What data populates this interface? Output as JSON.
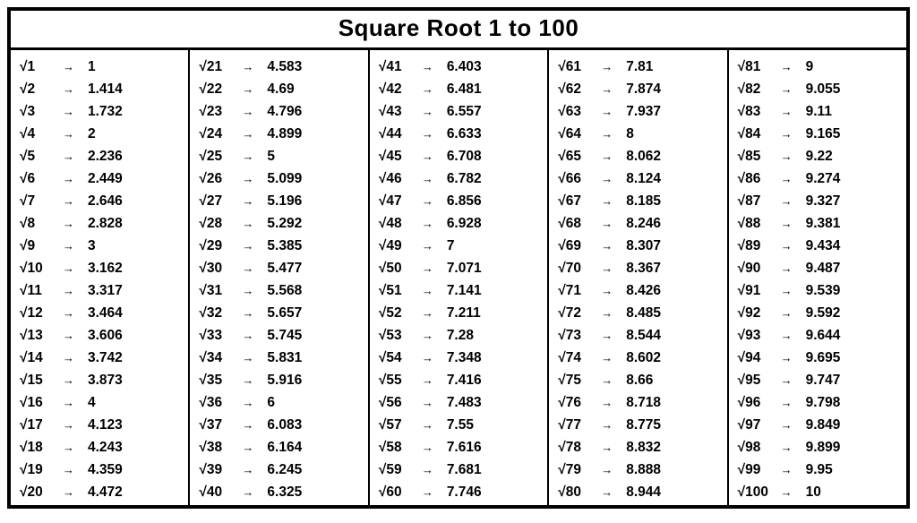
{
  "title": "Square Root 1 to 100",
  "arrow_glyph": "→",
  "radical": "√",
  "columns": [
    [
      {
        "n": "1",
        "v": "1"
      },
      {
        "n": "2",
        "v": "1.414"
      },
      {
        "n": "3",
        "v": "1.732"
      },
      {
        "n": "4",
        "v": "2"
      },
      {
        "n": "5",
        "v": "2.236"
      },
      {
        "n": "6",
        "v": "2.449"
      },
      {
        "n": "7",
        "v": "2.646"
      },
      {
        "n": "8",
        "v": "2.828"
      },
      {
        "n": "9",
        "v": "3"
      },
      {
        "n": "10",
        "v": "3.162"
      },
      {
        "n": "11",
        "v": "3.317"
      },
      {
        "n": "12",
        "v": "3.464"
      },
      {
        "n": "13",
        "v": "3.606"
      },
      {
        "n": "14",
        "v": "3.742"
      },
      {
        "n": "15",
        "v": "3.873"
      },
      {
        "n": "16",
        "v": "4"
      },
      {
        "n": "17",
        "v": "4.123"
      },
      {
        "n": "18",
        "v": "4.243"
      },
      {
        "n": "19",
        "v": "4.359"
      },
      {
        "n": "20",
        "v": "4.472"
      }
    ],
    [
      {
        "n": "21",
        "v": "4.583"
      },
      {
        "n": "22",
        "v": "4.69"
      },
      {
        "n": "23",
        "v": "4.796"
      },
      {
        "n": "24",
        "v": "4.899"
      },
      {
        "n": "25",
        "v": "5"
      },
      {
        "n": "26",
        "v": "5.099"
      },
      {
        "n": "27",
        "v": "5.196"
      },
      {
        "n": "28",
        "v": "5.292"
      },
      {
        "n": "29",
        "v": "5.385"
      },
      {
        "n": "30",
        "v": "5.477"
      },
      {
        "n": "31",
        "v": "5.568"
      },
      {
        "n": "32",
        "v": "5.657"
      },
      {
        "n": "33",
        "v": "5.745"
      },
      {
        "n": "34",
        "v": "5.831"
      },
      {
        "n": "35",
        "v": "5.916"
      },
      {
        "n": "36",
        "v": "6"
      },
      {
        "n": "37",
        "v": "6.083"
      },
      {
        "n": "38",
        "v": "6.164"
      },
      {
        "n": "39",
        "v": "6.245"
      },
      {
        "n": "40",
        "v": "6.325"
      }
    ],
    [
      {
        "n": "41",
        "v": "6.403"
      },
      {
        "n": "42",
        "v": "6.481"
      },
      {
        "n": "43",
        "v": "6.557"
      },
      {
        "n": "44",
        "v": "6.633"
      },
      {
        "n": "45",
        "v": "6.708"
      },
      {
        "n": "46",
        "v": "6.782"
      },
      {
        "n": "47",
        "v": "6.856"
      },
      {
        "n": "48",
        "v": "6.928"
      },
      {
        "n": "49",
        "v": "7"
      },
      {
        "n": "50",
        "v": "7.071"
      },
      {
        "n": "51",
        "v": "7.141"
      },
      {
        "n": "52",
        "v": "7.211"
      },
      {
        "n": "53",
        "v": "7.28"
      },
      {
        "n": "54",
        "v": "7.348"
      },
      {
        "n": "55",
        "v": "7.416"
      },
      {
        "n": "56",
        "v": "7.483"
      },
      {
        "n": "57",
        "v": "7.55"
      },
      {
        "n": "58",
        "v": "7.616"
      },
      {
        "n": "59",
        "v": "7.681"
      },
      {
        "n": "60",
        "v": "7.746"
      }
    ],
    [
      {
        "n": "61",
        "v": "7.81"
      },
      {
        "n": "62",
        "v": "7.874"
      },
      {
        "n": "63",
        "v": "7.937"
      },
      {
        "n": "64",
        "v": "8"
      },
      {
        "n": "65",
        "v": "8.062"
      },
      {
        "n": "66",
        "v": "8.124"
      },
      {
        "n": "67",
        "v": "8.185"
      },
      {
        "n": "68",
        "v": "8.246"
      },
      {
        "n": "69",
        "v": "8.307"
      },
      {
        "n": "70",
        "v": "8.367"
      },
      {
        "n": "71",
        "v": "8.426"
      },
      {
        "n": "72",
        "v": "8.485"
      },
      {
        "n": "73",
        "v": "8.544"
      },
      {
        "n": "74",
        "v": "8.602"
      },
      {
        "n": "75",
        "v": "8.66"
      },
      {
        "n": "76",
        "v": "8.718"
      },
      {
        "n": "77",
        "v": "8.775"
      },
      {
        "n": "78",
        "v": "8.832"
      },
      {
        "n": "79",
        "v": "8.888"
      },
      {
        "n": "80",
        "v": "8.944"
      }
    ],
    [
      {
        "n": "81",
        "v": "9"
      },
      {
        "n": "82",
        "v": "9.055"
      },
      {
        "n": "83",
        "v": "9.11"
      },
      {
        "n": "84",
        "v": "9.165"
      },
      {
        "n": "85",
        "v": "9.22"
      },
      {
        "n": "86",
        "v": "9.274"
      },
      {
        "n": "87",
        "v": "9.327"
      },
      {
        "n": "88",
        "v": "9.381"
      },
      {
        "n": "89",
        "v": "9.434"
      },
      {
        "n": "90",
        "v": "9.487"
      },
      {
        "n": "91",
        "v": "9.539"
      },
      {
        "n": "92",
        "v": "9.592"
      },
      {
        "n": "93",
        "v": "9.644"
      },
      {
        "n": "94",
        "v": "9.695"
      },
      {
        "n": "95",
        "v": "9.747"
      },
      {
        "n": "96",
        "v": "9.798"
      },
      {
        "n": "97",
        "v": "9.849"
      },
      {
        "n": "98",
        "v": "9.899"
      },
      {
        "n": "99",
        "v": "9.95"
      },
      {
        "n": "100",
        "v": "10"
      }
    ]
  ],
  "style": {
    "border_color": "#000000",
    "background_color": "#ffffff",
    "title_fontsize": 26,
    "cell_fontsize": 15.5,
    "font_weight": 700
  }
}
